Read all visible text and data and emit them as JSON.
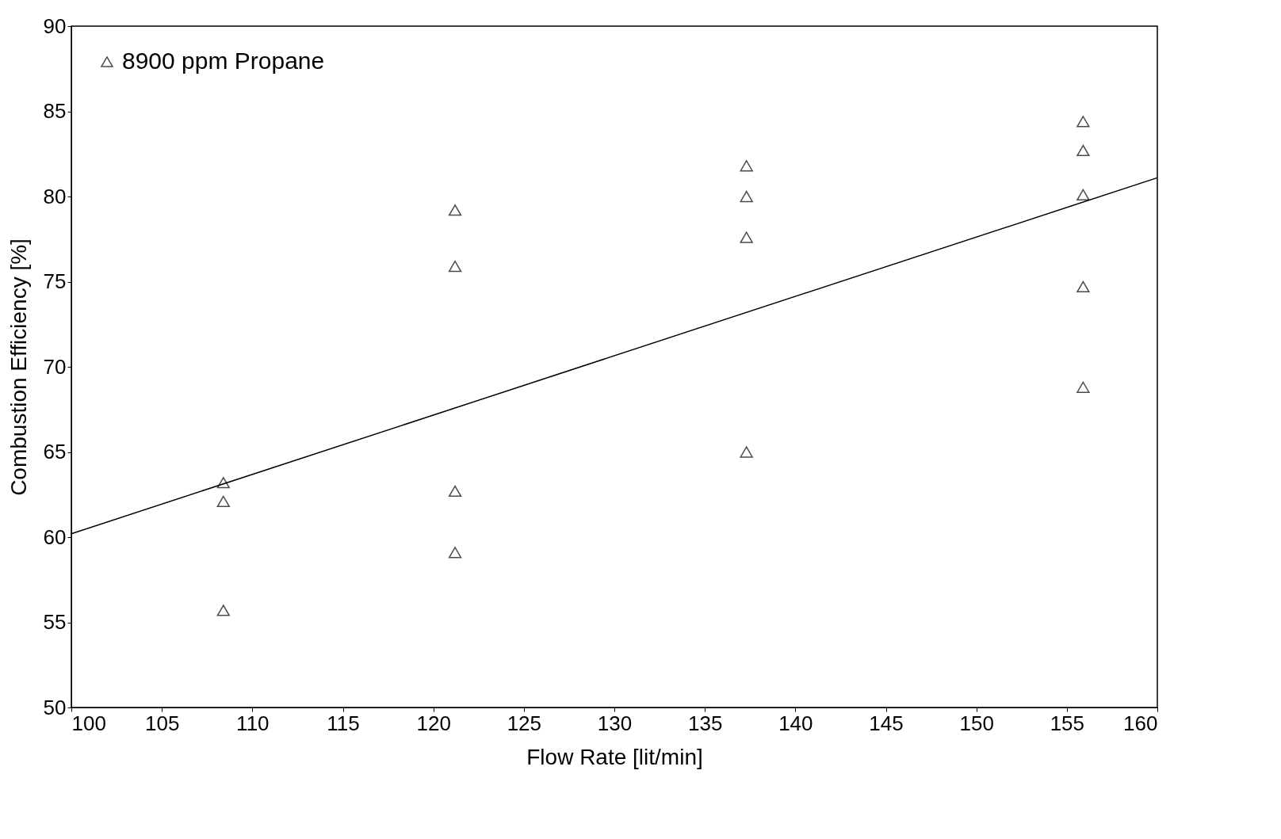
{
  "chart_data": {
    "type": "scatter",
    "xlabel": "Flow Rate [lit/min]",
    "ylabel": "Combustion Efficiency [%]",
    "xlim": [
      100,
      160
    ],
    "ylim": [
      50,
      90
    ],
    "xticks": [
      100,
      105,
      110,
      115,
      120,
      125,
      130,
      135,
      140,
      145,
      150,
      155,
      160
    ],
    "yticks": [
      50,
      55,
      60,
      65,
      70,
      75,
      80,
      85,
      90
    ],
    "grid": false,
    "legend": "top left",
    "marker": "triangle",
    "series": [
      {
        "name": "8900 ppm Propane",
        "color": "#000000",
        "x": [
          108.4,
          108.4,
          108.4,
          121.2,
          121.2,
          121.2,
          121.2,
          137.3,
          137.3,
          137.3,
          137.3,
          155.9,
          155.9,
          155.9,
          155.9,
          155.9
        ],
        "values": [
          63.2,
          62.1,
          55.7,
          79.2,
          75.9,
          62.7,
          59.1,
          81.8,
          80.0,
          77.6,
          65.0,
          84.4,
          82.7,
          80.1,
          74.7,
          68.8
        ]
      },
      {
        "type": "line",
        "color": "#000000",
        "line_style": "solid",
        "marker": "none",
        "x": [
          100,
          160
        ],
        "values": [
          60.2,
          81.1
        ]
      }
    ]
  }
}
